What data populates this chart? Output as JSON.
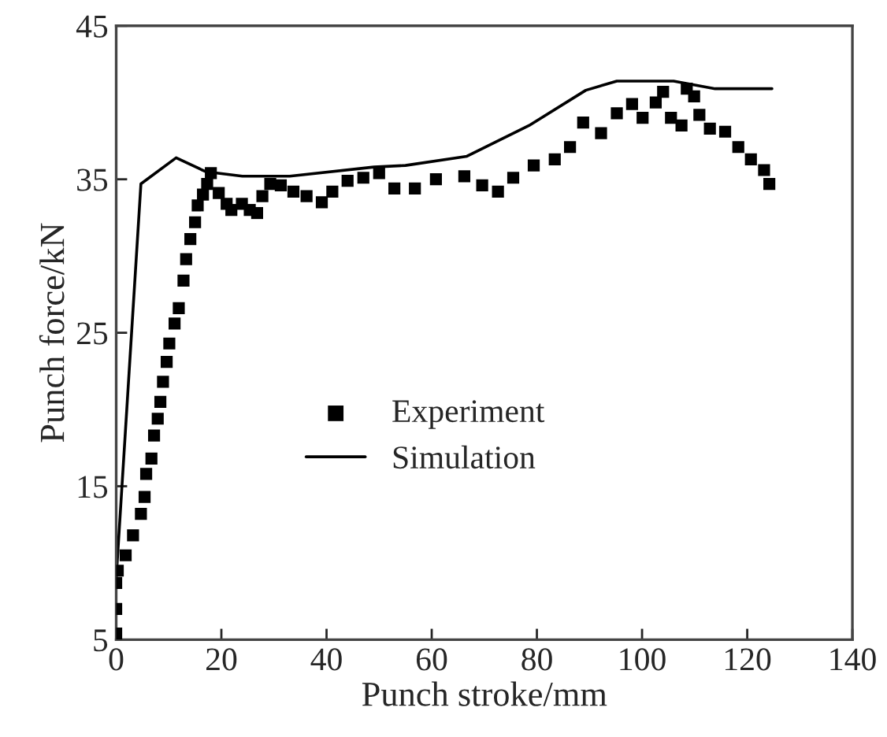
{
  "chart_data": {
    "type": "scatter",
    "xlabel": "Punch stroke/mm",
    "ylabel": "Punch force/kN",
    "xlim": [
      0,
      140
    ],
    "xticks": [
      0,
      20,
      40,
      60,
      80,
      100,
      120,
      140
    ],
    "ylim": [
      5,
      45
    ],
    "yticks": [
      5,
      15,
      25,
      35,
      45
    ],
    "grid": false,
    "legend": "center",
    "series": [
      {
        "name": "Experiment",
        "marker": "square",
        "color": "#000000",
        "x": [
          0,
          0,
          0,
          0.3,
          1.8,
          3.2,
          4.7,
          5.4,
          5.7,
          6.7,
          7.2,
          7.9,
          8.4,
          8.9,
          9.6,
          10.1,
          11.1,
          11.9,
          12.8,
          13.3,
          14.1,
          15,
          15.5,
          16.5,
          17.3,
          18,
          19.5,
          21,
          21.9,
          23.9,
          25.4,
          26.8,
          27.8,
          29.3,
          31.3,
          33.7,
          36.2,
          39.1,
          41.1,
          44,
          47,
          50,
          52.9,
          56.8,
          60.8,
          66.2,
          69.6,
          72.6,
          75.5,
          79.4,
          83.4,
          86.3,
          88.8,
          92.2,
          95.2,
          98.1,
          100.1,
          102.6,
          104,
          105.5,
          107.5,
          108.5,
          109.9,
          110.9,
          112.9,
          115.8,
          118.3,
          120.7,
          123.2,
          124.2
        ],
        "values": [
          5.4,
          7.0,
          8.7,
          9.5,
          10.5,
          11.8,
          13.2,
          14.3,
          15.8,
          16.8,
          18.3,
          19.4,
          20.5,
          21.8,
          23.1,
          24.3,
          25.6,
          26.6,
          28.4,
          29.8,
          31.1,
          32.2,
          33.3,
          34.0,
          34.7,
          35.4,
          34.1,
          33.4,
          33.0,
          33.4,
          33.0,
          32.8,
          33.9,
          34.7,
          34.6,
          34.2,
          33.9,
          33.5,
          34.2,
          34.9,
          35.1,
          35.4,
          34.4,
          34.4,
          35.0,
          35.2,
          34.6,
          34.2,
          35.1,
          35.9,
          36.3,
          37.1,
          38.7,
          38.0,
          39.3,
          39.9,
          39.0,
          40.0,
          40.7,
          39.0,
          38.5,
          40.9,
          40.4,
          39.2,
          38.3,
          38.1,
          37.1,
          36.3,
          35.6,
          34.7
        ]
      },
      {
        "name": "Simulation",
        "type": "line",
        "marker": "none",
        "line_style": "solid",
        "color": "#000000",
        "x": [
          0,
          4.7,
          11.4,
          17,
          24,
          33,
          49,
          55,
          66.7,
          78.5,
          89.3,
          95.2,
          106,
          113.9,
          124.7
        ],
        "values": [
          9,
          34.7,
          36.4,
          35.5,
          35.2,
          35.2,
          35.8,
          35.9,
          36.5,
          38.5,
          40.8,
          41.4,
          41.4,
          40.9,
          40.9
        ]
      }
    ]
  }
}
